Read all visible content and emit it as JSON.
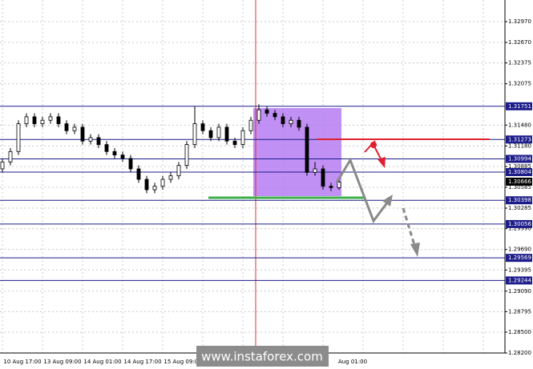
{
  "chart_data": {
    "type": "candlestick",
    "candles": [
      [
        1.3085,
        1.31,
        1.308,
        1.3095
      ],
      [
        1.3095,
        1.3115,
        1.309,
        1.311
      ],
      [
        1.311,
        1.3155,
        1.3105,
        1.315
      ],
      [
        1.315,
        1.3165,
        1.3145,
        1.316
      ],
      [
        1.316,
        1.3165,
        1.3145,
        1.315
      ],
      [
        1.315,
        1.316,
        1.3145,
        1.3155
      ],
      [
        1.3155,
        1.3165,
        1.315,
        1.316
      ],
      [
        1.316,
        1.3165,
        1.3145,
        1.315
      ],
      [
        1.315,
        1.3155,
        1.3135,
        1.314
      ],
      [
        1.314,
        1.315,
        1.3135,
        1.3145
      ],
      [
        1.3145,
        1.315,
        1.312,
        1.3125
      ],
      [
        1.3125,
        1.3135,
        1.312,
        1.313
      ],
      [
        1.313,
        1.3135,
        1.3115,
        1.312
      ],
      [
        1.312,
        1.3125,
        1.3105,
        1.311
      ],
      [
        1.311,
        1.3115,
        1.31,
        1.3105
      ],
      [
        1.3105,
        1.311,
        1.3095,
        1.31
      ],
      [
        1.31,
        1.3105,
        1.308,
        1.3085
      ],
      [
        1.3085,
        1.309,
        1.3065,
        1.307
      ],
      [
        1.307,
        1.3075,
        1.305,
        1.3055
      ],
      [
        1.3055,
        1.3065,
        1.305,
        1.306
      ],
      [
        1.306,
        1.3075,
        1.3055,
        1.307
      ],
      [
        1.307,
        1.308,
        1.3065,
        1.3075
      ],
      [
        1.3075,
        1.3095,
        1.307,
        1.309
      ],
      [
        1.309,
        1.3125,
        1.3085,
        1.312
      ],
      [
        1.312,
        1.3175,
        1.3115,
        1.315
      ],
      [
        1.315,
        1.3155,
        1.3135,
        1.314
      ],
      [
        1.314,
        1.3145,
        1.3125,
        1.313
      ],
      [
        1.313,
        1.315,
        1.3125,
        1.3145
      ],
      [
        1.3145,
        1.315,
        1.312,
        1.3125
      ],
      [
        1.3125,
        1.313,
        1.3115,
        1.312
      ],
      [
        1.312,
        1.3145,
        1.3115,
        1.314
      ],
      [
        1.314,
        1.316,
        1.3135,
        1.3155
      ],
      [
        1.3155,
        1.3178,
        1.315,
        1.317
      ],
      [
        1.317,
        1.3175,
        1.316,
        1.3165
      ],
      [
        1.3165,
        1.317,
        1.3155,
        1.316
      ],
      [
        1.316,
        1.3165,
        1.3145,
        1.315
      ],
      [
        1.315,
        1.316,
        1.3145,
        1.3155
      ],
      [
        1.3155,
        1.316,
        1.314,
        1.3145
      ],
      [
        1.3145,
        1.315,
        1.3075,
        1.308
      ],
      [
        1.308,
        1.3095,
        1.3075,
        1.3085
      ],
      [
        1.3085,
        1.309,
        1.3055,
        1.306
      ],
      [
        1.306,
        1.3065,
        1.3053,
        1.3058
      ],
      [
        1.3058,
        1.307,
        1.3055,
        1.3066
      ]
    ],
    "up_color": "#ffffff",
    "down_color": "#000000",
    "ylim": [
      1.282,
      1.33281
    ],
    "yticks": [
      {
        "value": 1.3297,
        "label": "1.32970"
      },
      {
        "value": 1.3267,
        "label": "1.32670"
      },
      1.32375,
      1.32075,
      {
        "value": 1.3148,
        "label": "1.31480"
      },
      {
        "value": 1.3118,
        "label": "1.31180"
      },
      1.30885,
      1.30585,
      1.30285,
      {
        "value": 1.2999,
        "label": "1.29990"
      },
      {
        "value": 1.2969,
        "label": "1.29690"
      },
      1.29395,
      {
        "value": 1.2909,
        "label": "1.29090"
      },
      1.28795,
      {
        "value": 1.285,
        "label": "1.28500"
      },
      {
        "value": 1.282,
        "label": "1.28200"
      }
    ],
    "levels": [
      1.31751,
      1.31273,
      1.30994,
      1.30804,
      1.30398,
      1.30056,
      1.29569,
      1.29244
    ],
    "level_color": "#1c1c8a",
    "current_price": 1.30666,
    "x_labels": [
      "10 Aug 17:00",
      "13 Aug 09:00",
      "14 Aug 01:00",
      "14 Aug 17:00",
      "15 Aug 09:00",
      "Aug 01:00"
    ],
    "watermark": "www.instaforex.com",
    "grid": true
  }
}
